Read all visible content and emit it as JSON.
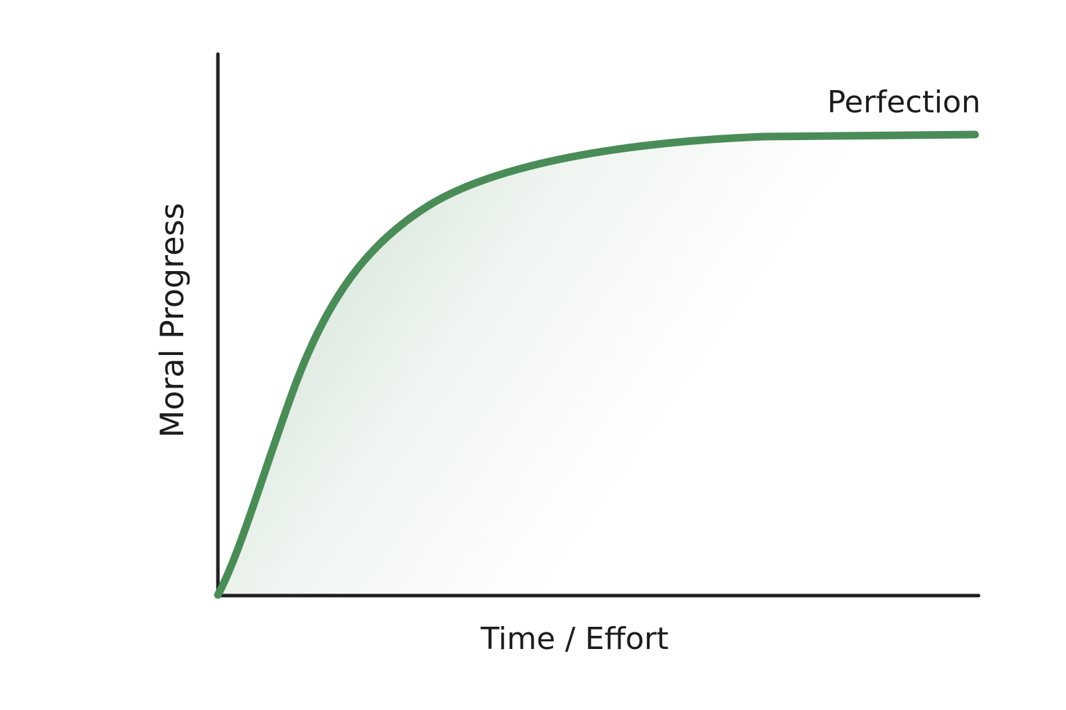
{
  "axes": {
    "x_label": "Time / Effort",
    "y_label": "Moral Progress"
  },
  "annotation": "Perfection"
}
